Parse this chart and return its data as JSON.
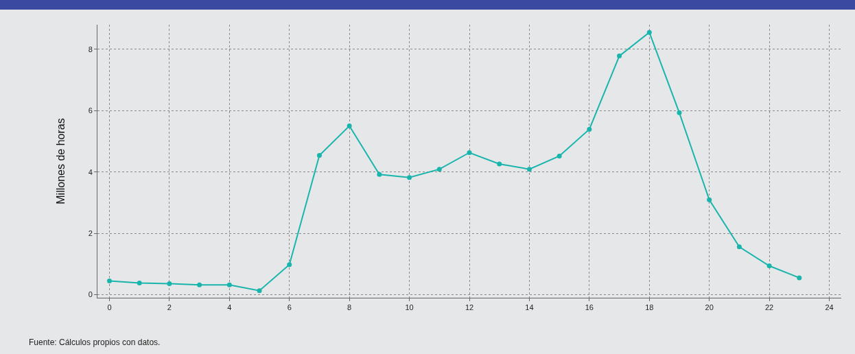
{
  "chart_data": {
    "type": "line",
    "ylabel": "Millones de horas",
    "x": [
      0,
      1,
      2,
      3,
      4,
      5,
      6,
      7,
      8,
      9,
      10,
      11,
      12,
      13,
      14,
      15,
      16,
      17,
      18,
      19,
      20,
      21,
      22,
      23
    ],
    "series": [
      {
        "color": "#19b5ad",
        "values": [
          0.45,
          0.38,
          0.36,
          0.32,
          0.32,
          0.13,
          0.98,
          4.54,
          5.5,
          3.92,
          3.82,
          4.09,
          4.63,
          4.26,
          4.09,
          4.52,
          5.39,
          7.78,
          8.55,
          5.93,
          3.09,
          1.56,
          0.94,
          0.55
        ]
      }
    ],
    "xlim": [
      -0.4,
      24.4
    ],
    "xticks": [
      0,
      2,
      4,
      6,
      8,
      10,
      12,
      14,
      16,
      18,
      20,
      22,
      24
    ],
    "ylim": [
      -0.1,
      8.8
    ],
    "yticks": [
      0,
      2,
      4,
      6,
      8
    ],
    "grid": true,
    "marker": "circle",
    "line_style": "solid",
    "annotations": [
      "Fuente: Cálculos propios con datos."
    ]
  }
}
